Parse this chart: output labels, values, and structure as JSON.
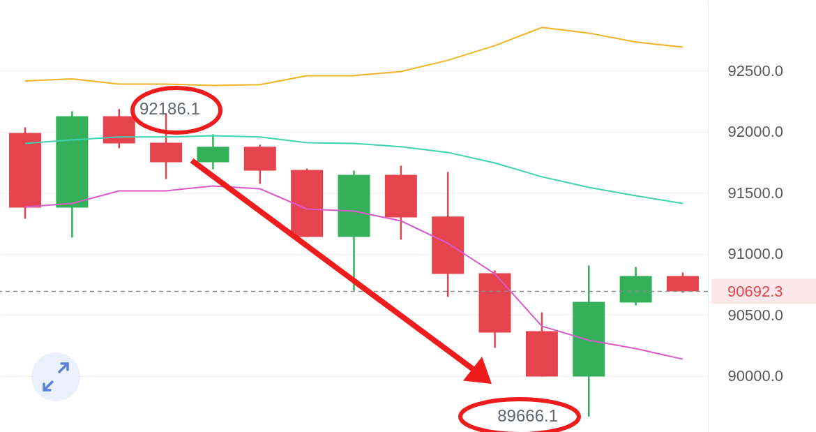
{
  "chart_data": {
    "type": "candlestick",
    "categories": [
      null,
      null,
      null,
      null,
      null,
      null,
      null,
      null,
      null,
      null,
      null,
      null,
      null,
      null,
      null
    ],
    "ohlc": [
      [
        91991,
        92037,
        91287,
        91379
      ],
      [
        91379,
        92168,
        91133,
        92128
      ],
      [
        92128,
        92186.1,
        91865,
        91905
      ],
      [
        91911,
        92151,
        91613,
        91751
      ],
      [
        91751,
        91980,
        91693,
        91877
      ],
      [
        91877,
        91894,
        91573,
        91682
      ],
      [
        91688,
        91699,
        91139,
        91139
      ],
      [
        91139,
        91682,
        90698,
        91648
      ],
      [
        91648,
        91722,
        91116,
        91299
      ],
      [
        91305,
        91671,
        90647,
        90836
      ],
      [
        90841,
        90864,
        90229,
        90355
      ],
      [
        90366,
        90521,
        89995,
        89995
      ],
      [
        89995,
        90904,
        89666.1,
        90607
      ],
      [
        90601,
        90893,
        90578,
        90818
      ],
      [
        90818,
        90847,
        90681,
        90692.3
      ]
    ],
    "colors": [
      "#e5444f",
      "#34b05a",
      "#e5444f",
      "#e5444f",
      "#34b05a",
      "#e5444f",
      "#e5444f",
      "#34b05a",
      "#e5444f",
      "#e5444f",
      "#e5444f",
      "#e5444f",
      "#34b05a",
      "#34b05a",
      "#e5444f"
    ],
    "series": [
      {
        "type": "line",
        "color": "#f0b323",
        "values": [
          92417,
          92434,
          92391,
          92391,
          92380,
          92386,
          92460,
          92460,
          92494,
          92586,
          92706,
          92855,
          92809,
          92735,
          92694
        ]
      },
      {
        "type": "line",
        "color": "#3fd1b0",
        "values": [
          91905,
          91934,
          91957,
          91957,
          91968,
          91957,
          91911,
          91905,
          91877,
          91831,
          91745,
          91631,
          91545,
          91476,
          91413
        ]
      },
      {
        "type": "line",
        "color": "#d95ac8",
        "values": [
          91385,
          91413,
          91516,
          91516,
          91556,
          91533,
          91367,
          91350,
          91270,
          91087,
          90836,
          90407,
          90292,
          90223,
          90137
        ]
      }
    ],
    "ylim": [
      89540,
      93080
    ],
    "yticks": [
      {
        "value": 90000,
        "label": "90000.0"
      },
      {
        "value": 90500,
        "label": "90500.0"
      },
      {
        "value": 91000,
        "label": "91000.0"
      },
      {
        "value": 91500,
        "label": "91500.0"
      },
      {
        "value": 92000,
        "label": "92000.0"
      },
      {
        "value": 92500,
        "label": "92500.0"
      }
    ],
    "grid": "y",
    "tick_labels": "y",
    "ref_lines": [
      {
        "axis": "y",
        "value": 90692.3,
        "label": "90692.3",
        "line_style": "dashed"
      }
    ],
    "annotations": [
      "92186.1",
      "89666.1"
    ]
  }
}
